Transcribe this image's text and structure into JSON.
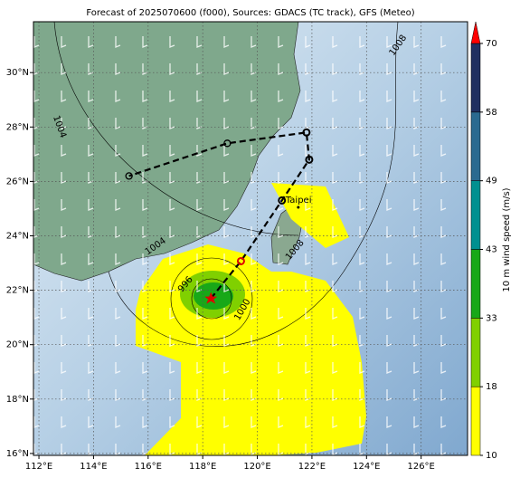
{
  "chart_data": {
    "type": "map",
    "title": "Forecast of 2025070600 (f000), Sources: GDACS (TC track), GFS (Meteo)",
    "xlim": [
      111.8,
      127.7
    ],
    "ylim": [
      15.93,
      31.87
    ],
    "xticks": [
      {
        "value": 112,
        "label": "112°E"
      },
      {
        "value": 114,
        "label": "114°E"
      },
      {
        "value": 116,
        "label": "116°E"
      },
      {
        "value": 118,
        "label": "118°E"
      },
      {
        "value": 120,
        "label": "120°E"
      },
      {
        "value": 122,
        "label": "122°E"
      },
      {
        "value": 124,
        "label": "124°E"
      },
      {
        "value": 126,
        "label": "126°E"
      }
    ],
    "yticks": [
      {
        "value": 16,
        "label": "16°N"
      },
      {
        "value": 18,
        "label": "18°N"
      },
      {
        "value": 20,
        "label": "20°N"
      },
      {
        "value": 22,
        "label": "22°N"
      },
      {
        "value": 24,
        "label": "24°N"
      },
      {
        "value": 26,
        "label": "26°N"
      },
      {
        "value": 28,
        "label": "28°N"
      },
      {
        "value": 30,
        "label": "30°N"
      }
    ],
    "grid": true,
    "track": {
      "lon": [
        118.3,
        119.4,
        120.9,
        121.9,
        121.8,
        118.9,
        115.3
      ],
      "lat": [
        21.7,
        23.07,
        25.3,
        26.8,
        27.8,
        27.4,
        26.2
      ],
      "color": "#000000"
    },
    "city": {
      "name": "Taipei",
      "lon": 121.5,
      "lat": 25.05
    },
    "isobar_labels": [
      "1008",
      "1004",
      "1004",
      "1008",
      "1000",
      "996"
    ],
    "colorbar": {
      "title": "10 m wind speed (m/s)",
      "levels": [
        10,
        18,
        33,
        43,
        49,
        58,
        70
      ],
      "colors": [
        "#ffff00",
        "#80d000",
        "#18a818",
        "#009090",
        "#2a6a90",
        "#1f2f60"
      ],
      "extend_color": "#ff0000"
    }
  }
}
